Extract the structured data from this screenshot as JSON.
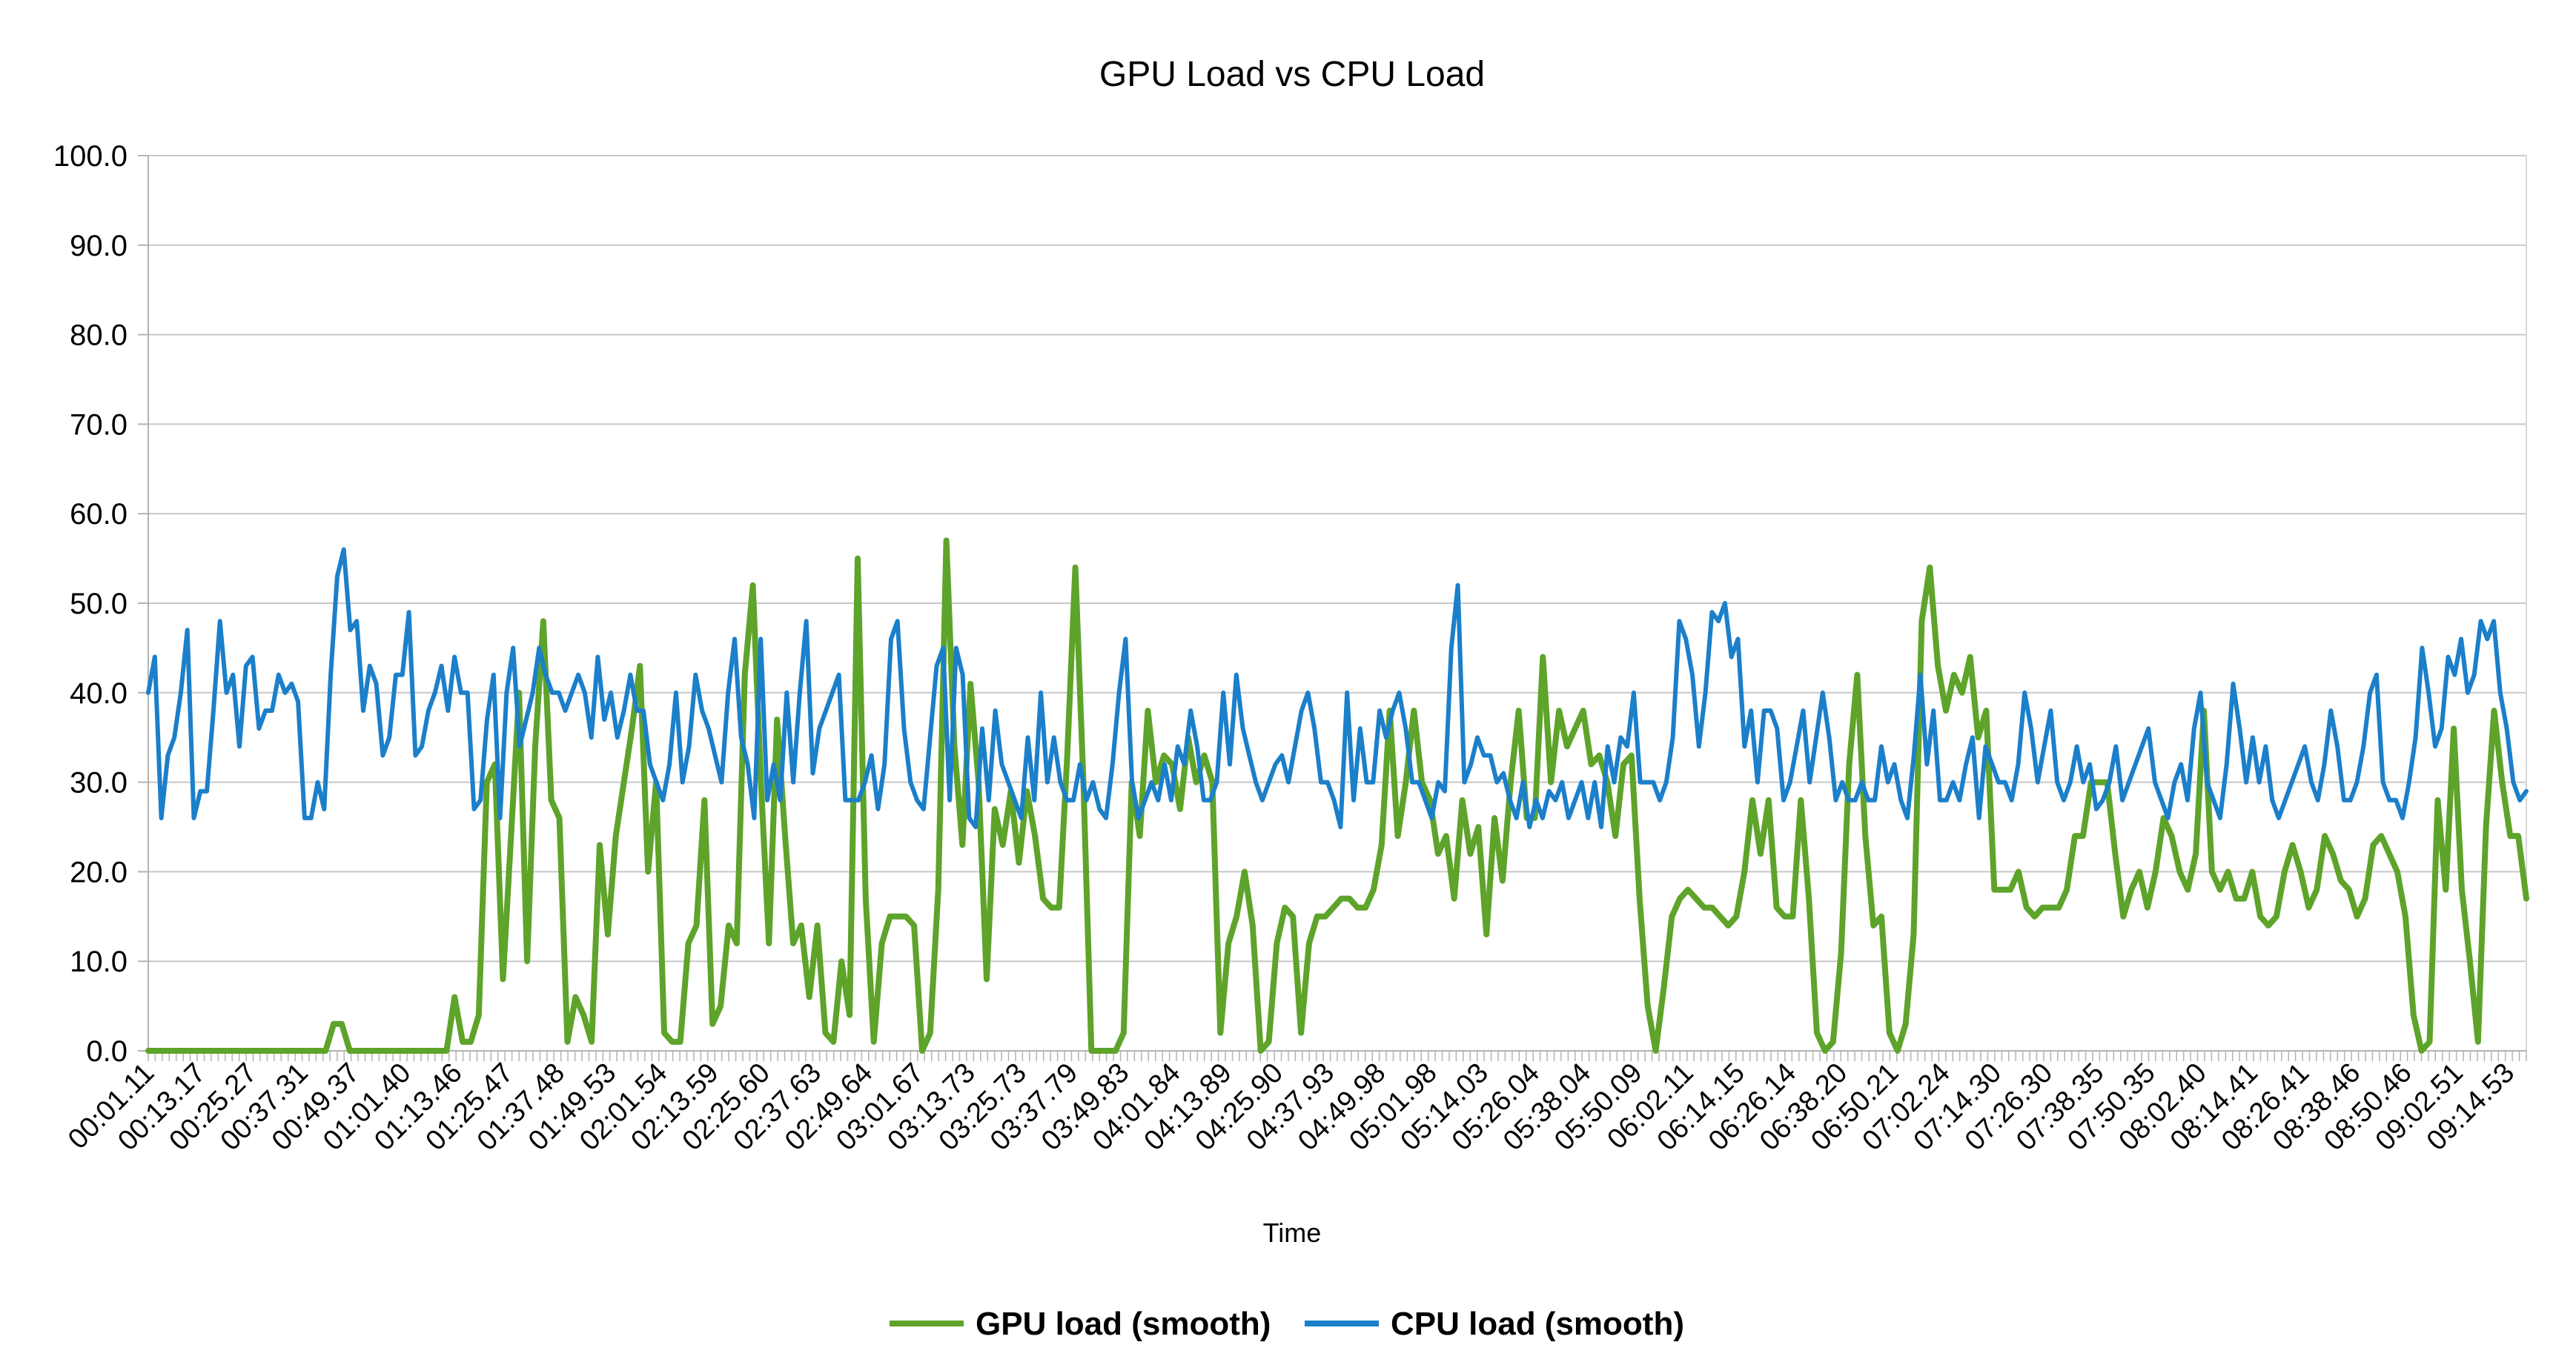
{
  "chart_data": {
    "type": "line",
    "title": "GPU Load vs CPU Load",
    "xlabel": "Time",
    "ylabel": "",
    "ylim": [
      0,
      100
    ],
    "yticks": [
      "0.0",
      "10.0",
      "20.0",
      "30.0",
      "40.0",
      "50.0",
      "60.0",
      "70.0",
      "80.0",
      "90.0",
      "100.0"
    ],
    "grid": true,
    "legend_position": "bottom",
    "x_tick_labels": [
      "00:01.11",
      "00:13.17",
      "00:25.27",
      "00:37.31",
      "00:49.37",
      "01:01.40",
      "01:13.46",
      "01:25.47",
      "01:37.48",
      "01:49.53",
      "02:01.54",
      "02:13.59",
      "02:25.60",
      "02:37.63",
      "02:49.64",
      "03:01.67",
      "03:13.73",
      "03:25.73",
      "03:37.79",
      "03:49.83",
      "04:01.84",
      "04:13.89",
      "04:25.90",
      "04:37.93",
      "04:49.98",
      "05:01.98",
      "05:14.03",
      "05:26.04",
      "05:38.04",
      "05:50.09",
      "06:02.11",
      "06:14.15",
      "06:26.14",
      "06:38.20",
      "06:50.21",
      "07:02.24",
      "07:14.30",
      "07:26.30",
      "07:38.35",
      "07:50.35",
      "08:02.40",
      "08:14.41",
      "08:26.41",
      "08:38.46",
      "08:50.46",
      "09:02.51",
      "09:14.53"
    ],
    "series": [
      {
        "name": "GPU load (smooth)",
        "color": "#5ea32a",
        "values": [
          0,
          0,
          0,
          0,
          0,
          0,
          0,
          0,
          0,
          0,
          0,
          0,
          0,
          0,
          0,
          0,
          0,
          0,
          0,
          0,
          0,
          0,
          0,
          3,
          3,
          0,
          0,
          0,
          0,
          0,
          0,
          0,
          0,
          0,
          0,
          0,
          0,
          0,
          6,
          1,
          1,
          4,
          30,
          32,
          8,
          24,
          40,
          10,
          34,
          48,
          28,
          26,
          1,
          6,
          4,
          1,
          23,
          13,
          24,
          30,
          36,
          43,
          20,
          30,
          2,
          1,
          1,
          12,
          14,
          28,
          3,
          5,
          14,
          12,
          42,
          52,
          30,
          12,
          37,
          24,
          12,
          14,
          6,
          14,
          2,
          1,
          10,
          4,
          55,
          17,
          1,
          12,
          15,
          15,
          15,
          14,
          0,
          2,
          18,
          57,
          34,
          23,
          41,
          30,
          8,
          27,
          23,
          29,
          21,
          29,
          24,
          17,
          16,
          16,
          33,
          54,
          30,
          0,
          0,
          0,
          0,
          2,
          30,
          24,
          38,
          30,
          33,
          32,
          27,
          35,
          30,
          33,
          30,
          2,
          12,
          15,
          20,
          14,
          0,
          1,
          12,
          16,
          15,
          2,
          12,
          15,
          15,
          16,
          17,
          17,
          16,
          16,
          18,
          23,
          38,
          24,
          30,
          38,
          30,
          28,
          22,
          24,
          17,
          28,
          22,
          25,
          13,
          26,
          19,
          30,
          38,
          26,
          26,
          44,
          30,
          38,
          34,
          36,
          38,
          32,
          33,
          30,
          24,
          32,
          33,
          17,
          5,
          0,
          7,
          15,
          17,
          18,
          17,
          16,
          16,
          15,
          14,
          15,
          20,
          28,
          22,
          28,
          16,
          15,
          15,
          28,
          17,
          2,
          0,
          1,
          11,
          32,
          42,
          24,
          14,
          15,
          2,
          0,
          3,
          13,
          48,
          54,
          43,
          38,
          42,
          40,
          44,
          35,
          38,
          18,
          18,
          18,
          20,
          16,
          15,
          16,
          16,
          16,
          18,
          24,
          24,
          30,
          30,
          30,
          22,
          15,
          18,
          20,
          16,
          20,
          26,
          24,
          20,
          18,
          22,
          38,
          20,
          18,
          20,
          17,
          17,
          20,
          15,
          14,
          15,
          20,
          23,
          20,
          16,
          18,
          24,
          22,
          19,
          18,
          15,
          17,
          23,
          24,
          22,
          20,
          15,
          4,
          0,
          1,
          28,
          18,
          36,
          18,
          10,
          1,
          25,
          38,
          30,
          24,
          24,
          17
        ]
      },
      {
        "name": "CPU load (smooth)",
        "color": "#1b7fca",
        "values": [
          40,
          44,
          26,
          33,
          35,
          40,
          47,
          26,
          29,
          29,
          38,
          48,
          40,
          42,
          34,
          43,
          44,
          36,
          38,
          38,
          42,
          40,
          41,
          39,
          26,
          26,
          30,
          27,
          42,
          53,
          56,
          47,
          48,
          38,
          43,
          41,
          33,
          35,
          42,
          42,
          49,
          33,
          34,
          38,
          40,
          43,
          38,
          44,
          40,
          40,
          27,
          28,
          37,
          42,
          26,
          40,
          45,
          34,
          37,
          40,
          45,
          42,
          40,
          40,
          38,
          40,
          42,
          40,
          35,
          44,
          37,
          40,
          35,
          38,
          42,
          38,
          38,
          32,
          30,
          28,
          32,
          40,
          30,
          34,
          42,
          38,
          36,
          33,
          30,
          40,
          46,
          35,
          32,
          26,
          46,
          28,
          32,
          28,
          40,
          30,
          40,
          48,
          31,
          36,
          38,
          40,
          42,
          28,
          28,
          28,
          30,
          33,
          27,
          32,
          46,
          48,
          36,
          30,
          28,
          27,
          35,
          43,
          45,
          28,
          45,
          42,
          26,
          25,
          36,
          28,
          38,
          32,
          30,
          28,
          26,
          35,
          28,
          40,
          30,
          35,
          30,
          28,
          28,
          32,
          28,
          30,
          27,
          26,
          32,
          40,
          46,
          30,
          26,
          28,
          30,
          28,
          32,
          28,
          34,
          32,
          38,
          34,
          28,
          28,
          30,
          40,
          32,
          42,
          36,
          33,
          30,
          28,
          30,
          32,
          33,
          30,
          34,
          38,
          40,
          36,
          30,
          30,
          28,
          25,
          40,
          28,
          36,
          30,
          30,
          38,
          35,
          38,
          40,
          36,
          30,
          30,
          28,
          26,
          30,
          29,
          45,
          52,
          30,
          32,
          35,
          33,
          33,
          30,
          31,
          28,
          26,
          30,
          25,
          28,
          26,
          29,
          28,
          30,
          26,
          28,
          30,
          26,
          30,
          25,
          34,
          30,
          35,
          34,
          40,
          30,
          30,
          30,
          28,
          30,
          35,
          48,
          46,
          42,
          34,
          40,
          49,
          48,
          50,
          44,
          46,
          34,
          38,
          30,
          38,
          38,
          36,
          28,
          30,
          34,
          38,
          30,
          35,
          40,
          35,
          28,
          30,
          28,
          28,
          30,
          28,
          28,
          34,
          30,
          32,
          28,
          26,
          33,
          42,
          32,
          38,
          28,
          28,
          30,
          28,
          32,
          35,
          26,
          34,
          32,
          30,
          30,
          28,
          32,
          40,
          36,
          30,
          34,
          38,
          30,
          28,
          30,
          34,
          30,
          32,
          27,
          28,
          30,
          34,
          28,
          30,
          32,
          34,
          36,
          30,
          28,
          26,
          30,
          32,
          28,
          36,
          40,
          30,
          28,
          26,
          32,
          41,
          36,
          30,
          35,
          30,
          34,
          28,
          26,
          28,
          30,
          32,
          34,
          30,
          28,
          32,
          38,
          34,
          28,
          28,
          30,
          34,
          40,
          42,
          30,
          28,
          28,
          26,
          30,
          35,
          45,
          40,
          34,
          36,
          44,
          42,
          46,
          40,
          42,
          48,
          46,
          48,
          40,
          36,
          30,
          28,
          29
        ]
      }
    ]
  }
}
